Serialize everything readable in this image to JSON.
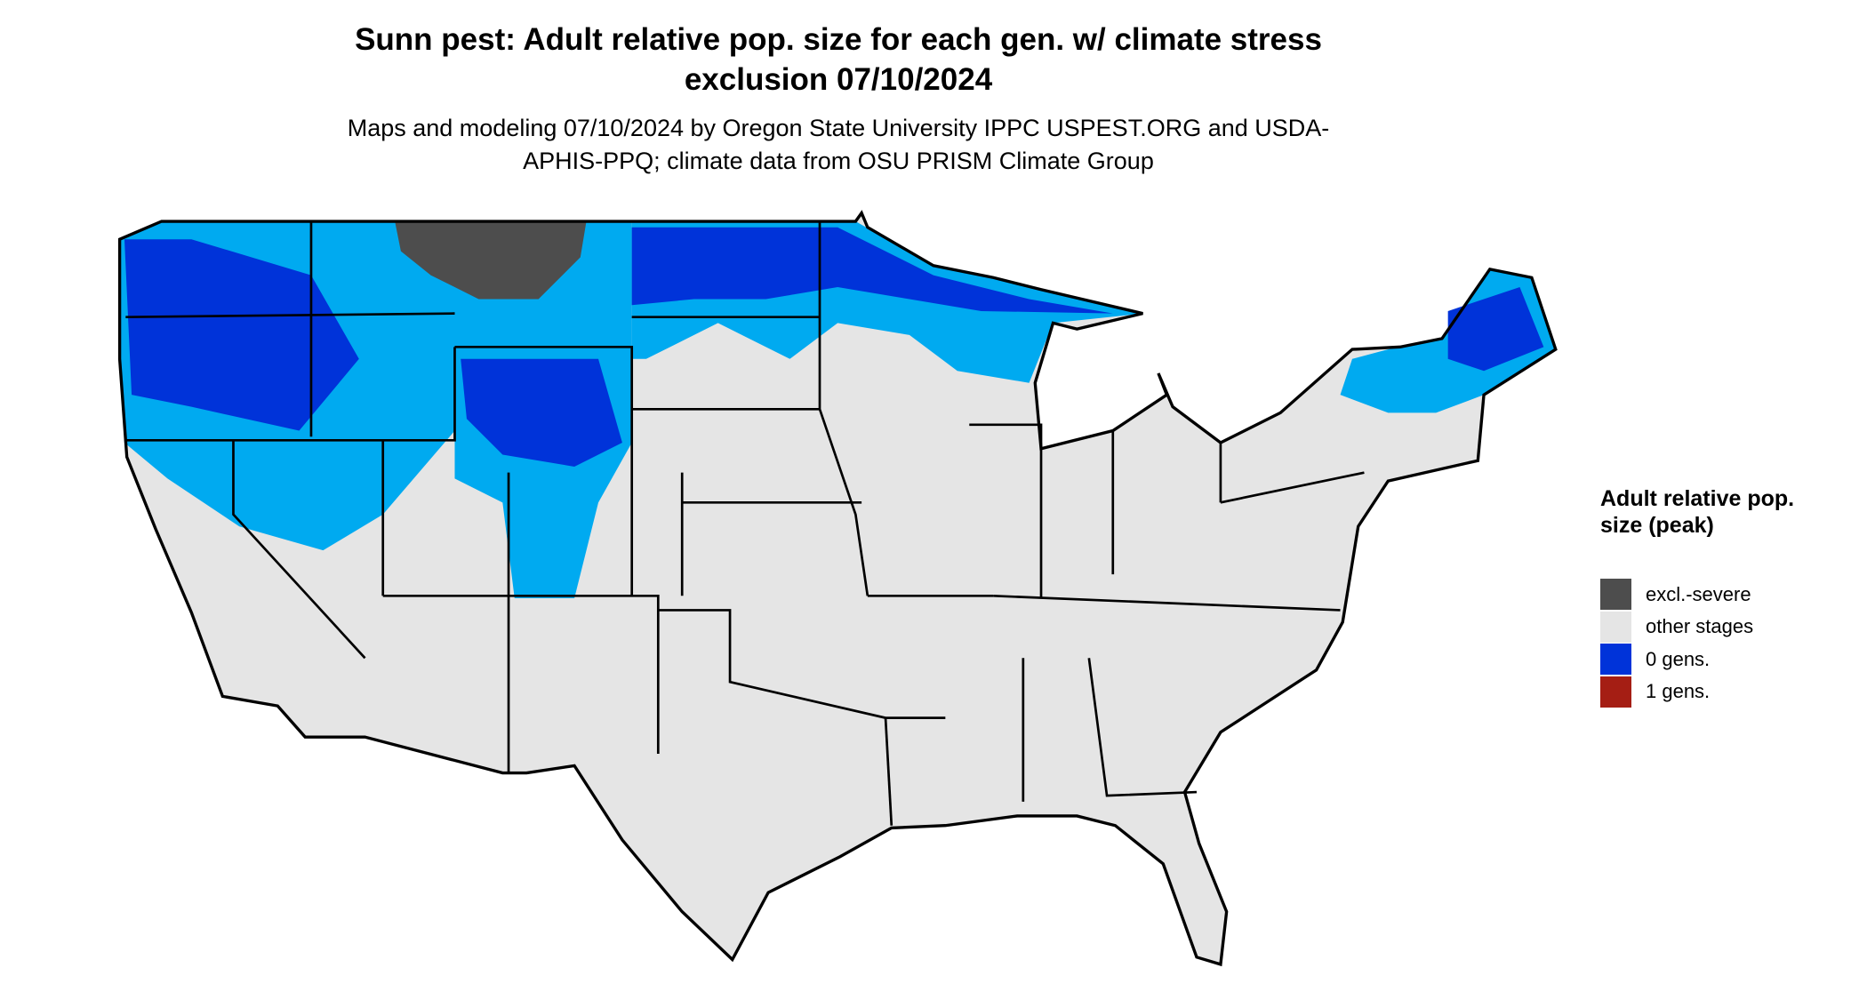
{
  "header": {
    "title": "Sunn pest: Adult relative pop. size for each gen. w/ climate stress exclusion 07/10/2024",
    "subtitle": "Maps and modeling 07/10/2024 by Oregon State University IPPC USPEST.ORG and USDA-APHIS-PPQ; climate data from OSU PRISM Climate Group"
  },
  "legend": {
    "title": "Adult relative pop. size (peak)",
    "items": [
      {
        "label": "excl.-severe",
        "color": "#4d4d4d"
      },
      {
        "label": "other stages",
        "color": "#e5e5e5"
      },
      {
        "label": "0 gens.",
        "color": "#0033d9"
      },
      {
        "label": "1 gens.",
        "color": "#a51e14"
      }
    ]
  }
}
